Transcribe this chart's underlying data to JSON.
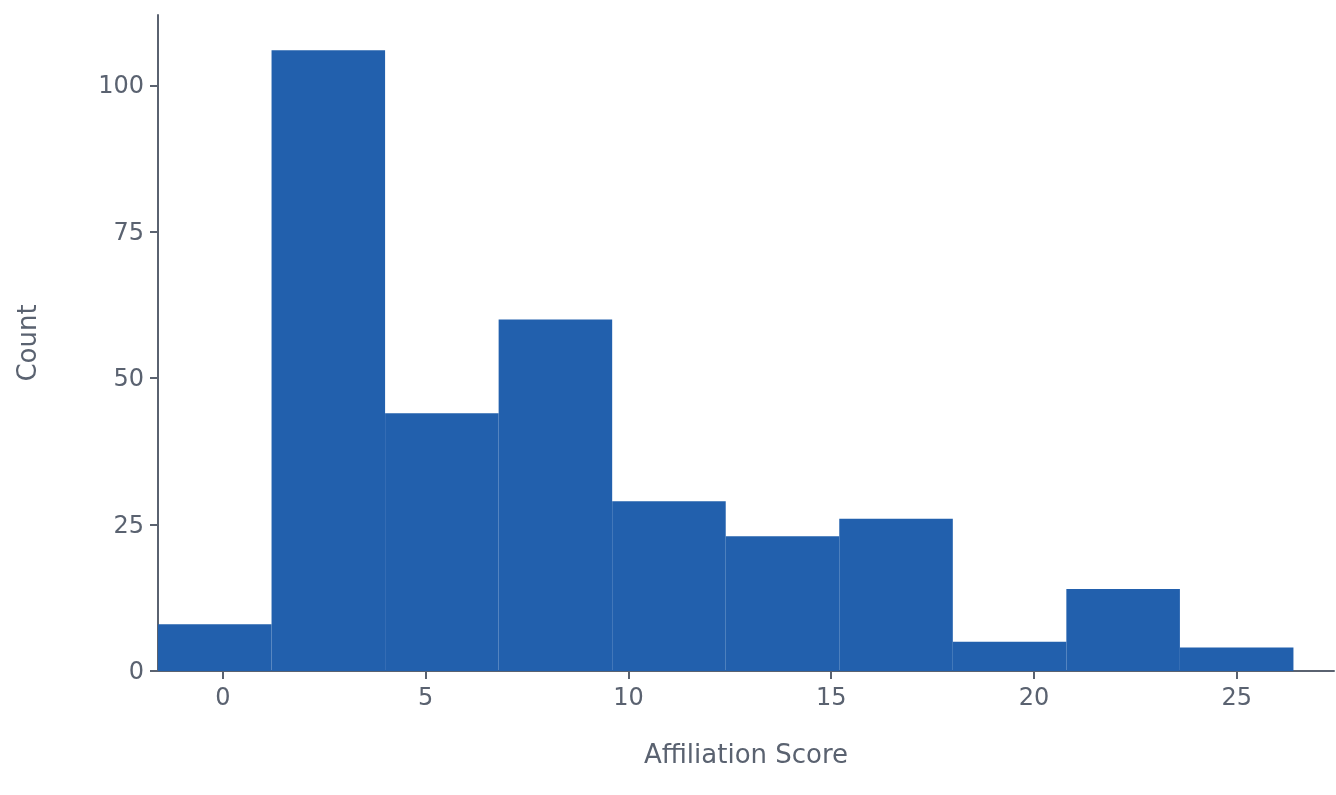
{
  "chart_data": {
    "type": "histogram",
    "xlabel": "Affiliation Score",
    "ylabel": "Count",
    "bins": [
      -1.6,
      1.2,
      4.0,
      6.8,
      9.6,
      12.4,
      15.2,
      18.0,
      20.8,
      23.6,
      26.4
    ],
    "values": [
      8,
      106,
      44,
      60,
      29,
      23,
      26,
      5,
      14,
      4
    ],
    "color": "#2260ad",
    "xlim": [
      -1.6,
      27.4
    ],
    "xticks": [
      0,
      5,
      10,
      15,
      20,
      25
    ],
    "ylim": [
      0,
      112
    ],
    "yticks": [
      0,
      25,
      50,
      75,
      100
    ],
    "grid": false,
    "legend": false
  }
}
